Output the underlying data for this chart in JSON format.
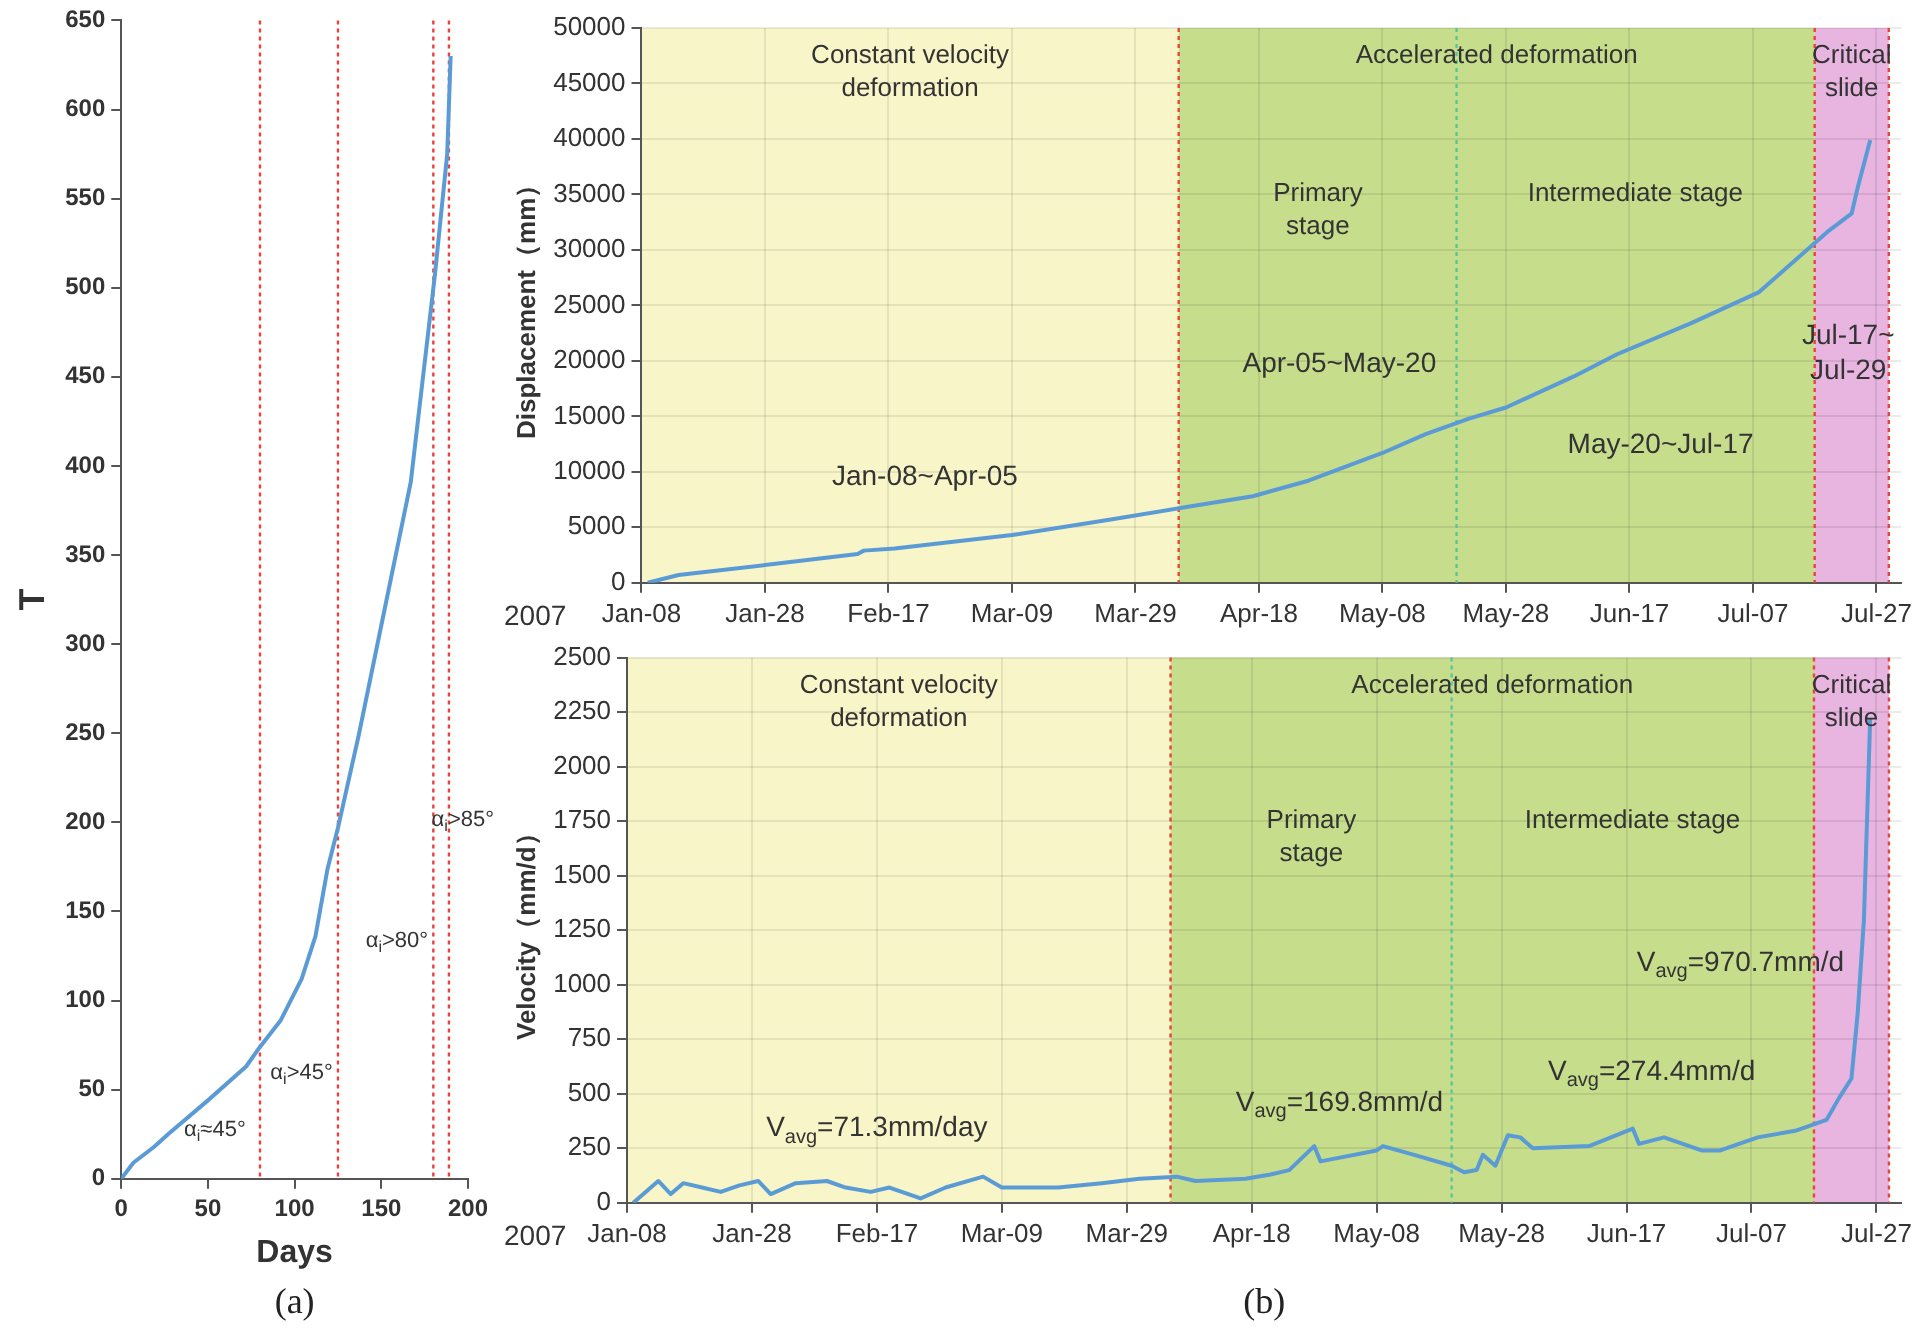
{
  "chart_data": [
    {
      "type": "line",
      "xlabel": "Days",
      "ylabel": "T",
      "x": [
        0,
        7,
        19,
        27,
        50,
        72,
        80,
        92,
        104,
        112,
        119,
        125,
        137,
        152,
        167,
        181,
        188,
        190
      ],
      "series": [
        {
          "color": "#5b9bd5",
          "values": [
            0,
            9,
            18,
            25,
            44,
            63,
            74,
            89,
            112,
            136,
            174,
            197,
            249,
            320,
            391,
            508,
            575,
            630
          ]
        }
      ],
      "xlim": [
        0,
        200
      ],
      "xticks": [
        0,
        50,
        100,
        150,
        200
      ],
      "ylim": [
        0,
        650
      ],
      "yticks": [
        0,
        50,
        100,
        150,
        200,
        250,
        300,
        350,
        400,
        450,
        500,
        550,
        600,
        650
      ],
      "grid": false,
      "marker": "none",
      "line_style": "solid",
      "ref_lines": [
        {
          "axis": "x",
          "value": 80,
          "color": "#e8443a",
          "line_style": "dotted"
        },
        {
          "axis": "x",
          "value": 125,
          "color": "#e8443a",
          "line_style": "dotted"
        },
        {
          "axis": "x",
          "value": 180,
          "color": "#e8443a",
          "line_style": "dotted"
        },
        {
          "axis": "x",
          "value": 189,
          "color": "#e8443a",
          "line_style": "dotted"
        }
      ],
      "annotations": [
        "α$_{i}$≈45°",
        "α$_{i}$>45°",
        "α$_{i}$>80°",
        "α$_{i}$>85°",
        "(a)"
      ]
    },
    {
      "type": "line",
      "xlabel": "2007",
      "ylabel": "Displacement（mm）",
      "x": [
        "2007-01-09",
        "2007-01-14",
        "2007-01-28",
        "2007-02-12",
        "2007-02-13",
        "2007-02-18",
        "2007-03-09",
        "2007-03-25",
        "2007-04-06",
        "2007-04-17",
        "2007-04-26",
        "2007-05-08",
        "2007-05-15",
        "2007-05-22",
        "2007-05-28",
        "2007-06-08",
        "2007-06-15",
        "2007-06-27",
        "2007-07-08",
        "2007-07-19",
        "2007-07-23",
        "2007-07-24",
        "2007-07-26"
      ],
      "series": [
        {
          "color": "#5b9bd5",
          "values": [
            0,
            700,
            1600,
            2600,
            2900,
            3100,
            4300,
            5700,
            6800,
            7800,
            9200,
            11700,
            13400,
            14800,
            15800,
            18600,
            20600,
            23400,
            26200,
            31600,
            33300,
            35700,
            39900
          ]
        }
      ],
      "xlim": [
        "2007-01-08",
        "2007-07-31"
      ],
      "xticks": [
        {
          "value": "2007-01-08",
          "label": "Jan-08"
        },
        {
          "value": "2007-01-28",
          "label": "Jan-28"
        },
        {
          "value": "2007-02-17",
          "label": "Feb-17"
        },
        {
          "value": "2007-03-09",
          "label": "Mar-09"
        },
        {
          "value": "2007-03-29",
          "label": "Mar-29"
        },
        {
          "value": "2007-04-18",
          "label": "Apr-18"
        },
        {
          "value": "2007-05-08",
          "label": "May-08"
        },
        {
          "value": "2007-05-28",
          "label": "May-28"
        },
        {
          "value": "2007-06-17",
          "label": "Jun-17"
        },
        {
          "value": "2007-07-07",
          "label": "Jul-07"
        },
        {
          "value": "2007-07-27",
          "label": "Jul-27"
        }
      ],
      "ylim": [
        0,
        50000
      ],
      "yticks": [
        0,
        5000,
        10000,
        15000,
        20000,
        25000,
        30000,
        35000,
        40000,
        45000,
        50000
      ],
      "grid": true,
      "marker": "none",
      "line_style": "solid",
      "bands": [
        {
          "axis": "x",
          "from": "2007-01-08",
          "to": "2007-04-05",
          "label": "Constant velocity deformation",
          "color": "#f8f6c8"
        },
        {
          "axis": "x",
          "from": "2007-04-05",
          "to": "2007-07-17",
          "label": "Accelerated deformation",
          "color": "#c6dd8c"
        },
        {
          "axis": "x",
          "from": "2007-07-17",
          "to": "2007-07-29",
          "label": "Critical slide",
          "color": "#e8b4e0"
        }
      ],
      "ref_lines": [
        {
          "axis": "x",
          "value": "2007-04-05",
          "color": "#e8443a",
          "line_style": "dotted"
        },
        {
          "axis": "x",
          "value": "2007-05-20",
          "color": "#5cc49a",
          "line_style": "dotted"
        },
        {
          "axis": "x",
          "value": "2007-07-17",
          "color": "#e8443a",
          "line_style": "dotted"
        },
        {
          "axis": "x",
          "value": "2007-07-29",
          "color": "#e8443a",
          "line_style": "dotted"
        }
      ],
      "annotations": [
        "Jan-08~Apr-05",
        "Apr-05~May-20",
        "May-20~Jul-17",
        "Jul-17~Jul-29",
        "Primary stage",
        "Intermediate stage"
      ]
    },
    {
      "type": "line",
      "xlabel": "2007",
      "ylabel": "Velocity（mm/d）",
      "x": [
        "2007-01-09",
        "2007-01-13",
        "2007-01-15",
        "2007-01-17",
        "2007-01-20",
        "2007-01-23",
        "2007-01-26",
        "2007-01-29",
        "2007-01-31",
        "2007-02-04",
        "2007-02-09",
        "2007-02-12",
        "2007-02-16",
        "2007-02-19",
        "2007-02-24",
        "2007-02-28",
        "2007-03-06",
        "2007-03-09",
        "2007-03-18",
        "2007-03-25",
        "2007-03-31",
        "2007-04-06",
        "2007-04-09",
        "2007-04-17",
        "2007-04-21",
        "2007-04-24",
        "2007-04-28",
        "2007-04-29",
        "2007-05-08",
        "2007-05-09",
        "2007-05-14",
        "2007-05-20",
        "2007-05-22",
        "2007-05-24",
        "2007-05-25",
        "2007-05-27",
        "2007-05-29",
        "2007-05-31",
        "2007-06-02",
        "2007-06-11",
        "2007-06-18",
        "2007-06-19",
        "2007-06-23",
        "2007-06-29",
        "2007-07-02",
        "2007-07-08",
        "2007-07-14",
        "2007-07-19",
        "2007-07-21",
        "2007-07-23",
        "2007-07-24",
        "2007-07-25",
        "2007-07-26"
      ],
      "series": [
        {
          "color": "#5b9bd5",
          "values": [
            0,
            100,
            40,
            90,
            70,
            50,
            80,
            100,
            40,
            90,
            100,
            70,
            50,
            70,
            20,
            70,
            120,
            70,
            70,
            90,
            110,
            120,
            100,
            110,
            130,
            150,
            260,
            190,
            240,
            260,
            220,
            170,
            140,
            150,
            220,
            170,
            310,
            300,
            250,
            260,
            340,
            270,
            300,
            240,
            240,
            300,
            330,
            380,
            480,
            570,
            870,
            1300,
            2220
          ]
        }
      ],
      "xlim": [
        "2007-01-08",
        "2007-07-31"
      ],
      "xticks": [
        {
          "value": "2007-01-08",
          "label": "Jan-08"
        },
        {
          "value": "2007-01-28",
          "label": "Jan-28"
        },
        {
          "value": "2007-02-17",
          "label": "Feb-17"
        },
        {
          "value": "2007-03-09",
          "label": "Mar-09"
        },
        {
          "value": "2007-03-29",
          "label": "Mar-29"
        },
        {
          "value": "2007-04-18",
          "label": "Apr-18"
        },
        {
          "value": "2007-05-08",
          "label": "May-08"
        },
        {
          "value": "2007-05-28",
          "label": "May-28"
        },
        {
          "value": "2007-06-17",
          "label": "Jun-17"
        },
        {
          "value": "2007-07-07",
          "label": "Jul-07"
        },
        {
          "value": "2007-07-27",
          "label": "Jul-27"
        }
      ],
      "ylim": [
        0,
        2500
      ],
      "yticks": [
        0,
        250,
        500,
        750,
        1000,
        1250,
        1500,
        1750,
        2000,
        2250,
        2500
      ],
      "grid": true,
      "marker": "none",
      "line_style": "solid",
      "bands": [
        {
          "axis": "x",
          "from": "2007-01-08",
          "to": "2007-04-05",
          "label": "Constant velocity deformation",
          "color": "#f8f6c8"
        },
        {
          "axis": "x",
          "from": "2007-04-05",
          "to": "2007-07-17",
          "label": "Accelerated deformation",
          "color": "#c6dd8c"
        },
        {
          "axis": "x",
          "from": "2007-07-17",
          "to": "2007-07-29",
          "label": "Critical slide",
          "color": "#e8b4e0"
        }
      ],
      "ref_lines": [
        {
          "axis": "x",
          "value": "2007-04-05",
          "color": "#e8443a",
          "line_style": "dotted"
        },
        {
          "axis": "x",
          "value": "2007-05-20",
          "color": "#5cc49a",
          "line_style": "dotted"
        },
        {
          "axis": "x",
          "value": "2007-07-17",
          "color": "#e8443a",
          "line_style": "dotted"
        },
        {
          "axis": "x",
          "value": "2007-07-29",
          "color": "#e8443a",
          "line_style": "dotted"
        }
      ],
      "annotations": [
        "V$_{avg}$=71.3mm/day",
        "V$_{avg}$=169.8mm/d",
        "V$_{avg}$=274.4mm/d",
        "V$_{avg}$=970.7mm/d",
        "Primary stage",
        "Intermediate stage",
        "(b)"
      ]
    }
  ]
}
